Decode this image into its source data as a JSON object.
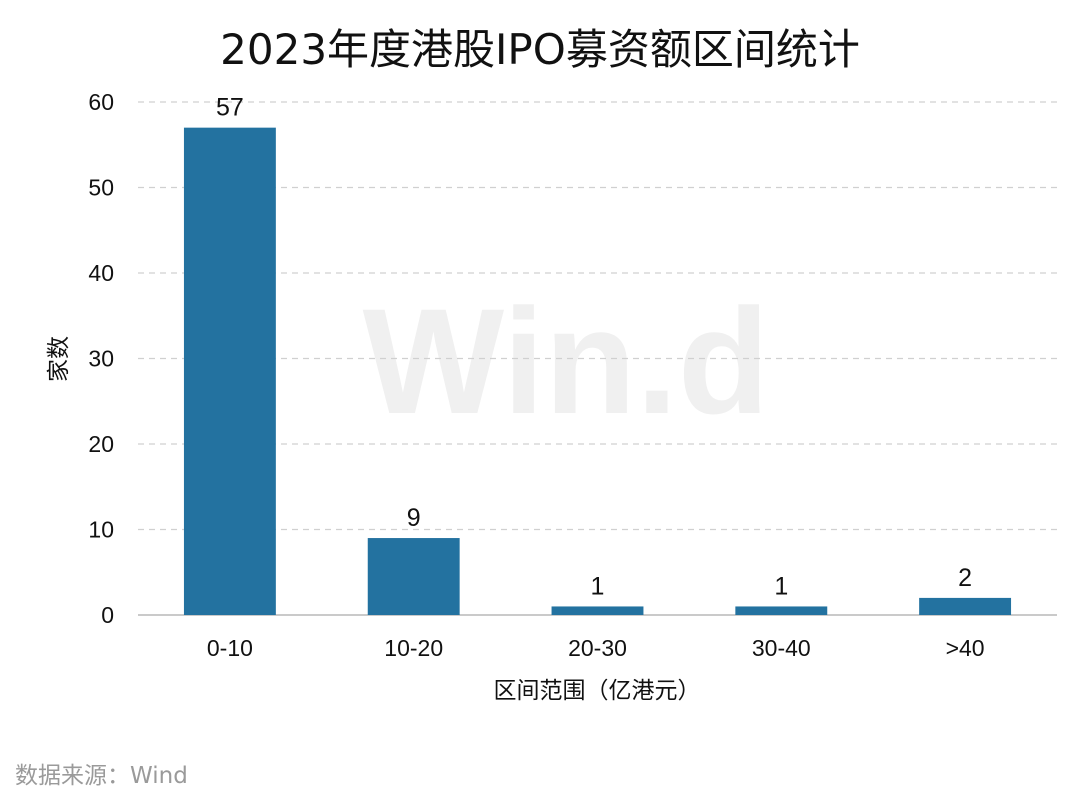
{
  "chart_data": {
    "type": "bar",
    "title": "2023年度港股IPO募资额区间统计",
    "xlabel": "区间范围（亿港元）",
    "ylabel": "家数",
    "categories": [
      "0-10",
      "10-20",
      "20-30",
      "30-40",
      ">40"
    ],
    "values": [
      57,
      9,
      1,
      1,
      2
    ],
    "ylim": [
      0,
      60
    ],
    "yticks": [
      0,
      10,
      20,
      30,
      40,
      50,
      60
    ],
    "grid": true,
    "legend": "none",
    "bar_color": "#2372a0"
  },
  "source_note": "数据来源：Wind",
  "watermark": "Win.d"
}
